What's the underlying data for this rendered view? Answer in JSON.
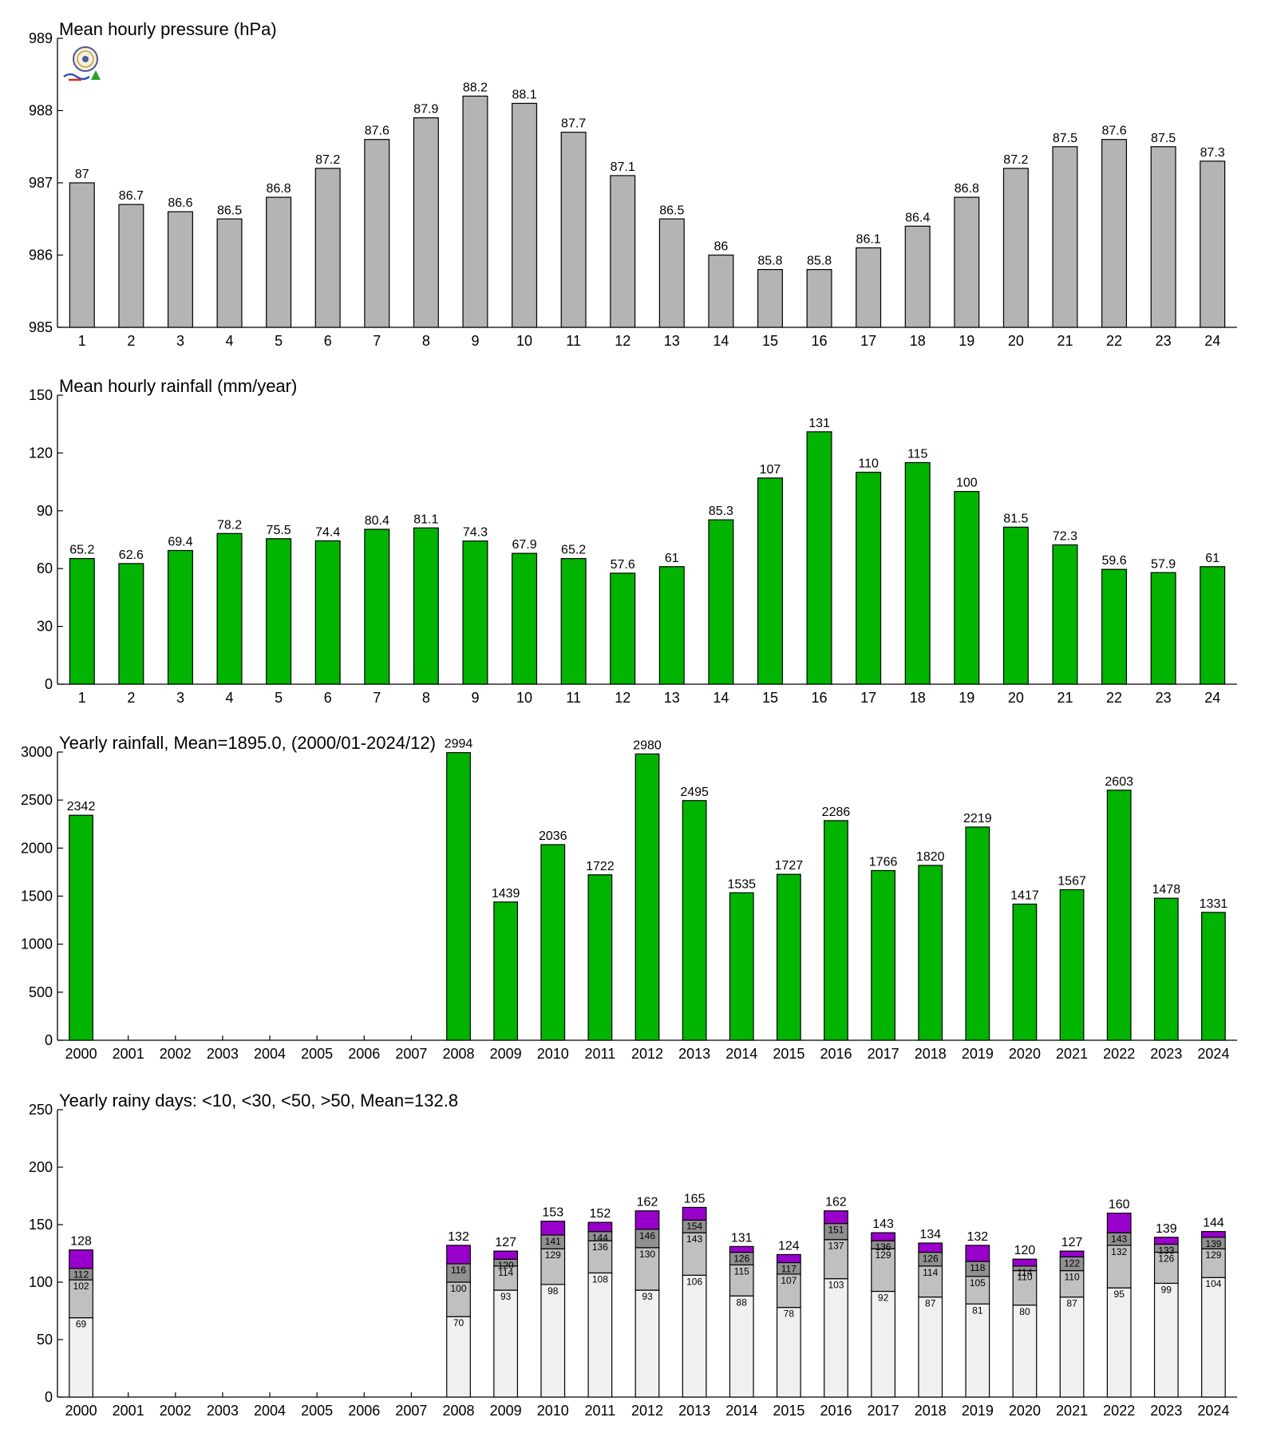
{
  "chart_data": [
    {
      "type": "bar",
      "title": "Mean hourly pressure (hPa)",
      "categories": [
        "1",
        "2",
        "3",
        "4",
        "5",
        "6",
        "7",
        "8",
        "9",
        "10",
        "11",
        "12",
        "13",
        "14",
        "15",
        "16",
        "17",
        "18",
        "19",
        "20",
        "21",
        "22",
        "23",
        "24"
      ],
      "values": [
        987.0,
        986.7,
        986.6,
        986.5,
        986.8,
        987.2,
        987.6,
        987.9,
        988.2,
        988.1,
        987.7,
        987.1,
        986.5,
        986.0,
        985.8,
        985.8,
        986.1,
        986.4,
        986.8,
        987.2,
        987.5,
        987.6,
        987.5,
        987.3
      ],
      "value_labels": [
        "87",
        "86.7",
        "86.6",
        "86.5",
        "86.8",
        "87.2",
        "87.6",
        "87.9",
        "88.2",
        "88.1",
        "87.7",
        "87.1",
        "86.5",
        "86",
        "85.8",
        "85.8",
        "86.1",
        "86.4",
        "86.8",
        "87.2",
        "87.5",
        "87.6",
        "87.5",
        "87.3"
      ],
      "ylim": [
        985,
        989
      ],
      "yticks": [
        "985",
        "986",
        "987",
        "988",
        "989"
      ],
      "color": "#b4b4b4"
    },
    {
      "type": "bar",
      "title": "Mean hourly rainfall (mm/year)",
      "categories": [
        "1",
        "2",
        "3",
        "4",
        "5",
        "6",
        "7",
        "8",
        "9",
        "10",
        "11",
        "12",
        "13",
        "14",
        "15",
        "16",
        "17",
        "18",
        "19",
        "20",
        "21",
        "22",
        "23",
        "24"
      ],
      "values": [
        65.2,
        62.6,
        69.4,
        78.2,
        75.5,
        74.4,
        80.4,
        81.1,
        74.3,
        67.9,
        65.2,
        57.6,
        61,
        85.3,
        107,
        131,
        110,
        115,
        100,
        81.5,
        72.3,
        59.6,
        57.9,
        61
      ],
      "value_labels": [
        "65.2",
        "62.6",
        "69.4",
        "78.2",
        "75.5",
        "74.4",
        "80.4",
        "81.1",
        "74.3",
        "67.9",
        "65.2",
        "57.6",
        "61",
        "85.3",
        "107",
        "131",
        "110",
        "115",
        "100",
        "81.5",
        "72.3",
        "59.6",
        "57.9",
        "61"
      ],
      "ylim": [
        0,
        150
      ],
      "yticks": [
        "0",
        "30",
        "60",
        "90",
        "120",
        "150"
      ],
      "color": "#00b400"
    },
    {
      "type": "bar",
      "title": "Yearly rainfall, Mean=1895.0, (2000/01-2024/12)",
      "categories": [
        "2000",
        "2001",
        "2002",
        "2003",
        "2004",
        "2005",
        "2006",
        "2007",
        "2008",
        "2009",
        "2010",
        "2011",
        "2012",
        "2013",
        "2014",
        "2015",
        "2016",
        "2017",
        "2018",
        "2019",
        "2020",
        "2021",
        "2022",
        "2023",
        "2024"
      ],
      "values": [
        2342,
        null,
        null,
        null,
        null,
        null,
        null,
        null,
        2994,
        1439,
        2036,
        1722,
        2980,
        2495,
        1535,
        1727,
        2286,
        1766,
        1820,
        2219,
        1417,
        1567,
        2603,
        1478,
        1331
      ],
      "value_labels": [
        "2342",
        "",
        "",
        "",
        "",
        "",
        "",
        "",
        "2994",
        "1439",
        "2036",
        "1722",
        "2980",
        "2495",
        "1535",
        "1727",
        "2286",
        "1766",
        "1820",
        "2219",
        "1417",
        "1567",
        "2603",
        "1478",
        "1331"
      ],
      "ylim": [
        0,
        3000
      ],
      "yticks": [
        "0",
        "500",
        "1000",
        "1500",
        "2000",
        "2500",
        "3000"
      ],
      "color": "#00b400"
    },
    {
      "type": "bar",
      "stacked": true,
      "title": "Yearly rainy days: <10, <30, <50, >50, Mean=132.8",
      "categories": [
        "2000",
        "2001",
        "2002",
        "2003",
        "2004",
        "2005",
        "2006",
        "2007",
        "2008",
        "2009",
        "2010",
        "2011",
        "2012",
        "2013",
        "2014",
        "2015",
        "2016",
        "2017",
        "2018",
        "2019",
        "2020",
        "2021",
        "2022",
        "2023",
        "2024"
      ],
      "cumulative": {
        "lt10": [
          69,
          null,
          null,
          null,
          null,
          null,
          null,
          null,
          70,
          93,
          98,
          108,
          93,
          106,
          88,
          78,
          103,
          92,
          87,
          81,
          80,
          87,
          95,
          99,
          104
        ],
        "lt30": [
          102,
          null,
          null,
          null,
          null,
          null,
          null,
          null,
          100,
          114,
          129,
          136,
          130,
          143,
          115,
          107,
          137,
          129,
          114,
          105,
          110,
          110,
          132,
          126,
          129
        ],
        "lt50": [
          112,
          null,
          null,
          null,
          null,
          null,
          null,
          null,
          116,
          120,
          141,
          144,
          146,
          154,
          126,
          117,
          151,
          136,
          126,
          118,
          114,
          122,
          143,
          133,
          139
        ],
        "total": [
          128,
          null,
          null,
          null,
          null,
          null,
          null,
          null,
          132,
          127,
          153,
          152,
          162,
          165,
          131,
          124,
          162,
          143,
          134,
          132,
          120,
          127,
          160,
          139,
          144
        ]
      },
      "series_colors": [
        "#f0f0f0",
        "#c0c0c0",
        "#909090",
        "#9900cc"
      ],
      "ylim": [
        0,
        250
      ],
      "yticks": [
        "0",
        "50",
        "100",
        "150",
        "200",
        "250"
      ]
    }
  ]
}
